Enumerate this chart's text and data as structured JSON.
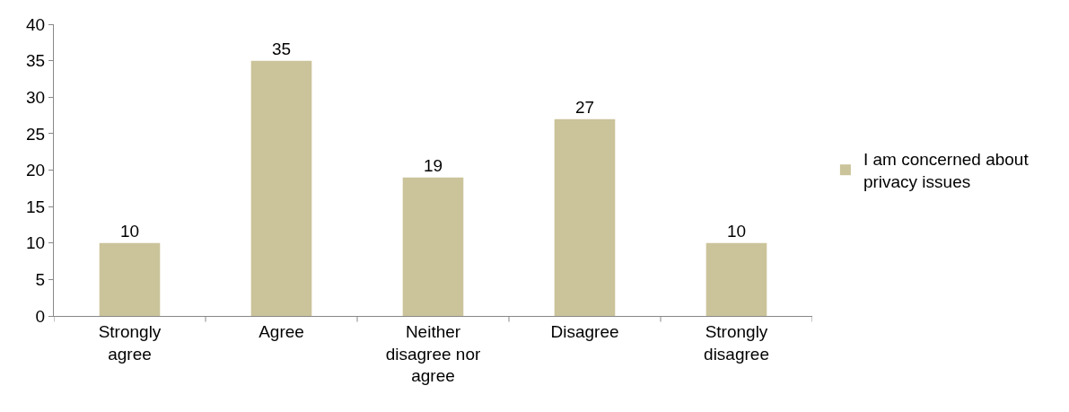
{
  "chart_data": {
    "type": "bar",
    "categories": [
      "Strongly agree",
      "Agree",
      "Neither disagree nor agree",
      "Disagree",
      "Strongly disagree"
    ],
    "series": [
      {
        "name": "I am concerned about privacy issues",
        "color": "#cbc39a",
        "values": [
          10,
          35,
          19,
          27,
          10
        ]
      }
    ],
    "ylim": [
      0,
      40
    ],
    "yticks": [
      0,
      5,
      10,
      15,
      20,
      25,
      30,
      35,
      40
    ],
    "data_labels": true,
    "legend": "right"
  }
}
